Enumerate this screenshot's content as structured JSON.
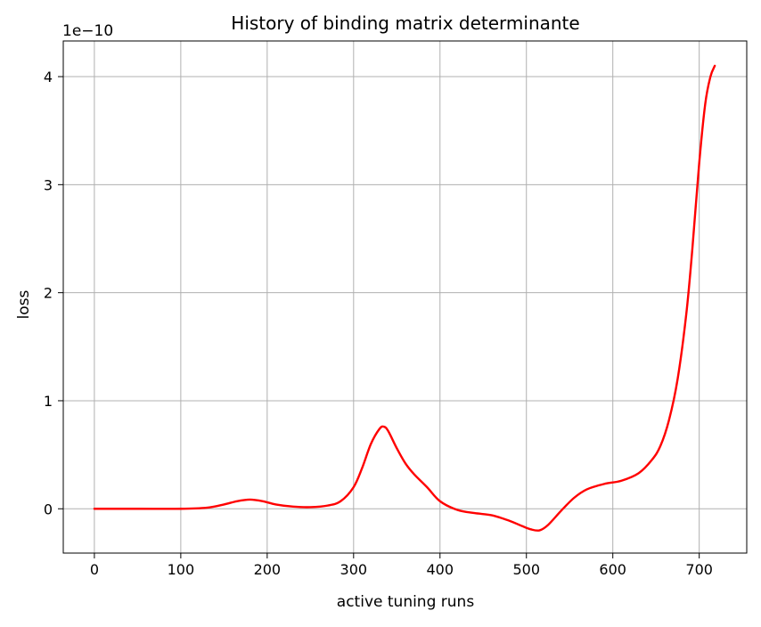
{
  "chart_data": {
    "type": "line",
    "title": "History of binding matrix determinante",
    "xlabel": "active tuning runs",
    "ylabel": "loss",
    "y_offset_label": "1e−10",
    "xlim": [
      -36,
      755
    ],
    "ylim": [
      -0.41,
      4.33
    ],
    "x_ticks": [
      0,
      100,
      200,
      300,
      400,
      500,
      600,
      700
    ],
    "x_tick_labels": [
      "0",
      "100",
      "200",
      "300",
      "400",
      "500",
      "600",
      "700"
    ],
    "y_ticks": [
      0,
      1,
      2,
      3,
      4
    ],
    "y_tick_labels": [
      "0",
      "1",
      "2",
      "3",
      "4"
    ],
    "grid": true,
    "legend": "none",
    "colors": {
      "line": "#ff0000",
      "grid": "#b0b0b0",
      "axes": "#000000"
    },
    "series": [
      {
        "color": "#ff0000",
        "x": [
          0,
          50,
          100,
          130,
          150,
          165,
          180,
          195,
          210,
          230,
          250,
          270,
          285,
          300,
          310,
          320,
          330,
          335,
          340,
          350,
          360,
          370,
          385,
          400,
          420,
          440,
          460,
          480,
          495,
          505,
          515,
          525,
          540,
          555,
          570,
          590,
          610,
          630,
          645,
          655,
          665,
          675,
          685,
          692,
          700,
          707,
          713,
          718
        ],
        "values": [
          0,
          0,
          0,
          0.01,
          0.04,
          0.07,
          0.085,
          0.07,
          0.04,
          0.02,
          0.015,
          0.03,
          0.07,
          0.2,
          0.38,
          0.6,
          0.74,
          0.76,
          0.72,
          0.56,
          0.42,
          0.32,
          0.2,
          0.07,
          -0.01,
          -0.04,
          -0.06,
          -0.11,
          -0.16,
          -0.19,
          -0.2,
          -0.15,
          -0.02,
          0.1,
          0.18,
          0.23,
          0.26,
          0.33,
          0.45,
          0.58,
          0.82,
          1.2,
          1.8,
          2.4,
          3.2,
          3.75,
          4.0,
          4.1
        ]
      }
    ]
  }
}
